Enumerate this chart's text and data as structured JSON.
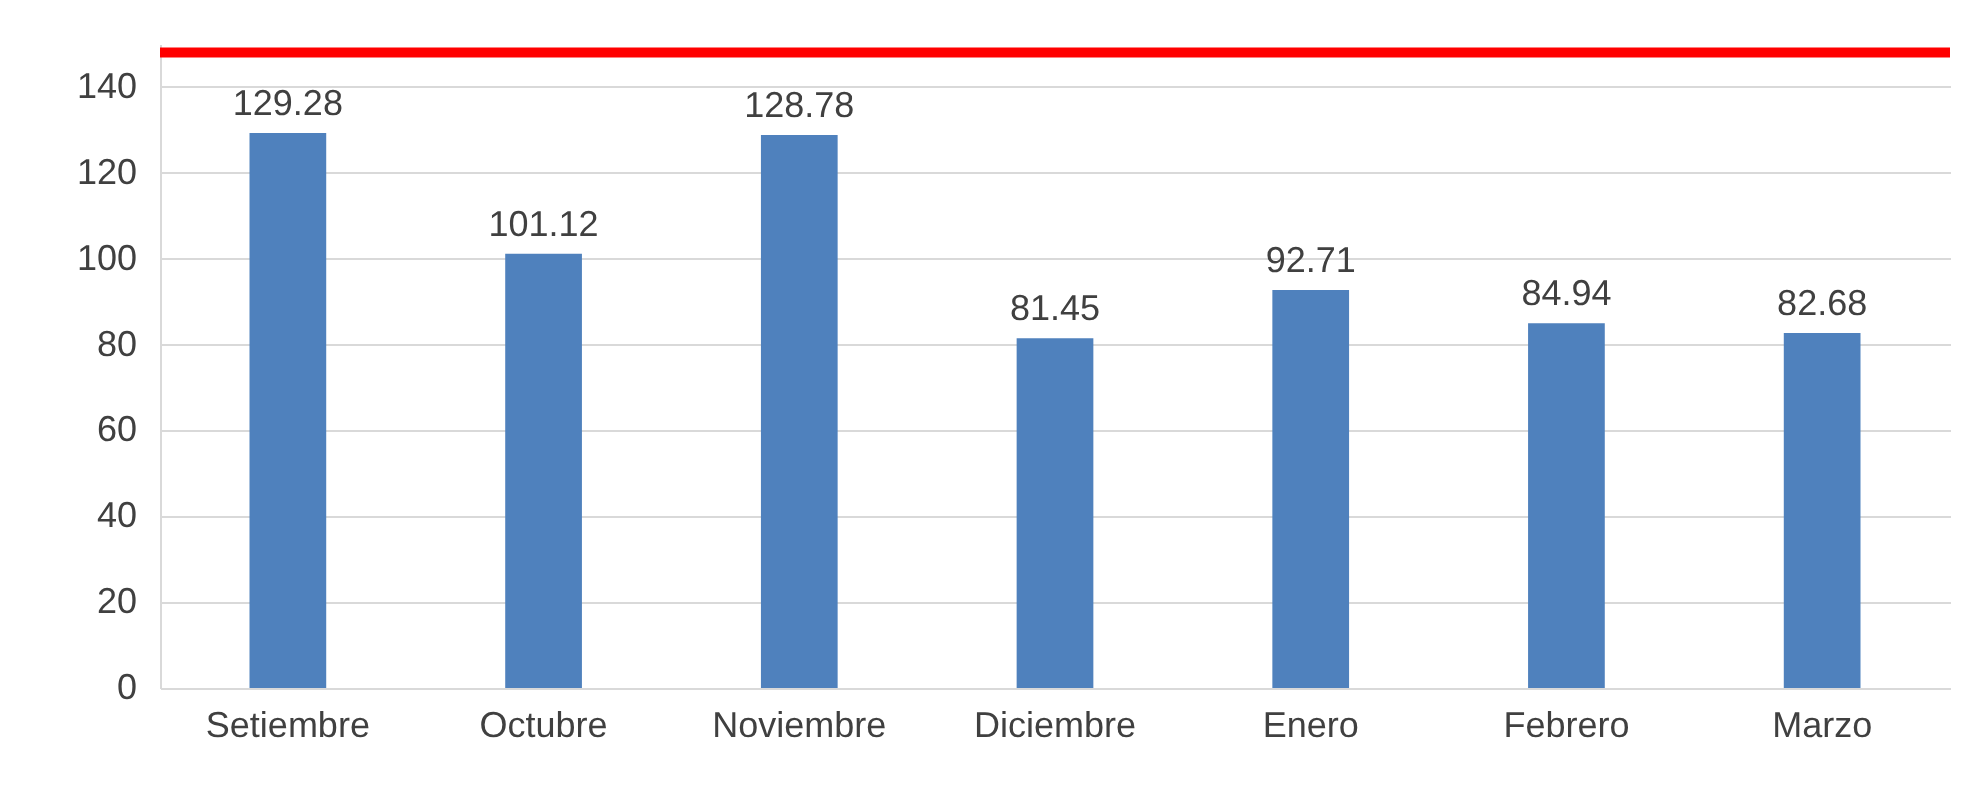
{
  "chart_data": {
    "type": "bar",
    "categories": [
      "Setiembre",
      "Octubre",
      "Noviembre",
      "Diciembre",
      "Enero",
      "Febrero",
      "Marzo"
    ],
    "values": [
      129.28,
      101.12,
      128.78,
      81.45,
      92.71,
      84.94,
      82.68
    ],
    "color": "#4f81bd",
    "data_labels": true,
    "ylim": [
      0,
      150
    ],
    "yticks": [
      0,
      20,
      40,
      60,
      80,
      100,
      120,
      140
    ],
    "grid": "y",
    "ref_lines": [
      {
        "axis": "y",
        "value": 148,
        "color": "#ff0000",
        "line_style": "solid"
      }
    ]
  }
}
